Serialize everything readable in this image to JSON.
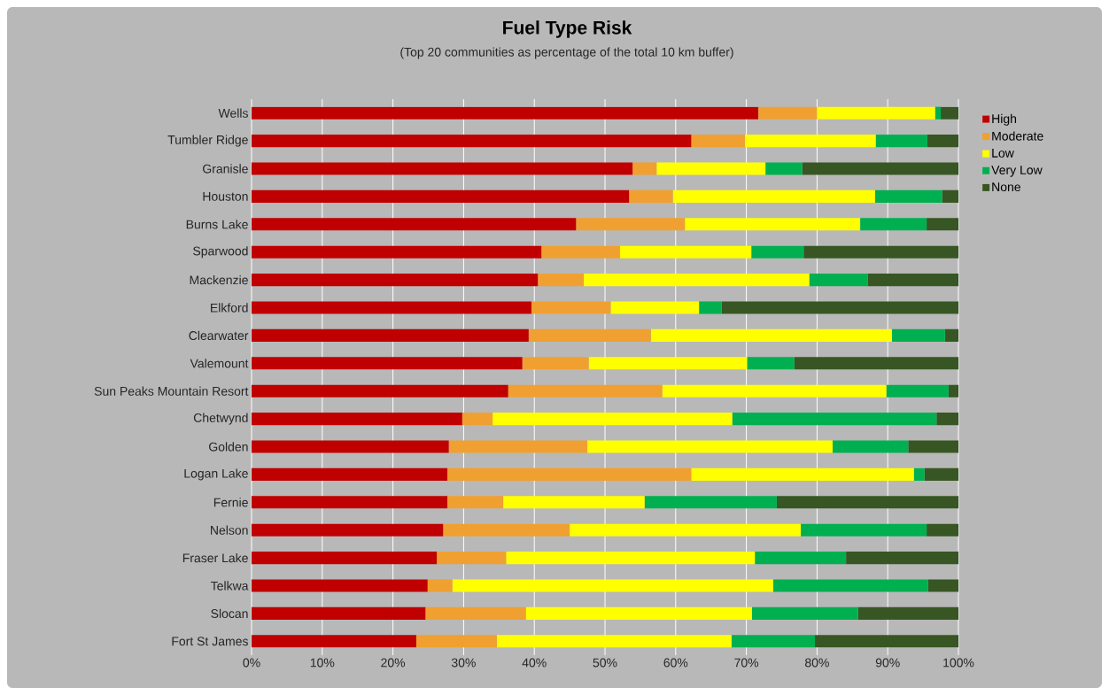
{
  "chart_data": {
    "type": "bar",
    "orientation": "horizontal",
    "stacked": true,
    "title": "Fuel Type Risk",
    "subtitle": "(Top 20 communities as percentage of the total 10 km buffer)",
    "categories": [
      "Wells",
      "Tumbler Ridge",
      "Granisle",
      "Houston",
      "Burns Lake",
      "Sparwood",
      "Mackenzie",
      "Elkford",
      "Clearwater",
      "Valemount",
      "Sun Peaks Mountain Resort",
      "Chetwynd",
      "Golden",
      "Logan Lake",
      "Fernie",
      "Nelson",
      "Fraser Lake",
      "Telkwa",
      "Slocan",
      "Fort St James"
    ],
    "series": [
      {
        "name": "High",
        "color": "#c00000",
        "values": [
          71.7,
          62.2,
          53.9,
          53.4,
          45.9,
          41.0,
          40.5,
          39.6,
          39.2,
          38.3,
          36.3,
          29.8,
          27.9,
          27.7,
          27.7,
          27.1,
          26.2,
          24.9,
          24.6,
          23.3
        ]
      },
      {
        "name": "Moderate",
        "color": "#f0a030",
        "values": [
          8.3,
          7.6,
          3.4,
          6.2,
          15.4,
          11.1,
          6.5,
          11.2,
          17.3,
          9.4,
          21.8,
          4.3,
          19.6,
          34.5,
          7.9,
          17.9,
          9.8,
          3.5,
          14.2,
          11.4
        ]
      },
      {
        "name": "Low",
        "color": "#ffff00",
        "values": [
          16.7,
          18.5,
          15.4,
          28.6,
          24.8,
          18.6,
          31.9,
          12.5,
          34.1,
          22.4,
          31.7,
          33.9,
          34.7,
          31.5,
          20.0,
          32.7,
          35.2,
          45.4,
          32.0,
          33.2
        ]
      },
      {
        "name": "Very Low",
        "color": "#00b050",
        "values": [
          0.8,
          7.3,
          5.2,
          9.5,
          9.4,
          7.4,
          8.3,
          3.2,
          7.5,
          6.7,
          8.8,
          28.9,
          10.7,
          1.5,
          18.7,
          17.8,
          12.9,
          21.9,
          15.0,
          11.8
        ]
      },
      {
        "name": "None",
        "color": "#375623",
        "values": [
          2.5,
          4.4,
          22.1,
          2.3,
          4.5,
          21.9,
          12.8,
          33.5,
          1.9,
          23.2,
          1.4,
          3.1,
          7.1,
          4.8,
          25.7,
          4.5,
          15.9,
          4.3,
          14.2,
          20.3
        ]
      }
    ],
    "xlim": [
      0,
      100
    ],
    "xticks": [
      {
        "value": 0,
        "label": "0%"
      },
      {
        "value": 10,
        "label": "10%"
      },
      {
        "value": 20,
        "label": "20%"
      },
      {
        "value": 30,
        "label": "30%"
      },
      {
        "value": 40,
        "label": "40%"
      },
      {
        "value": 50,
        "label": "50%"
      },
      {
        "value": 60,
        "label": "60%"
      },
      {
        "value": 70,
        "label": "70%"
      },
      {
        "value": 80,
        "label": "80%"
      },
      {
        "value": 90,
        "label": "90%"
      },
      {
        "value": 100,
        "label": "100%"
      }
    ],
    "grid": "x",
    "legend": "top right"
  }
}
